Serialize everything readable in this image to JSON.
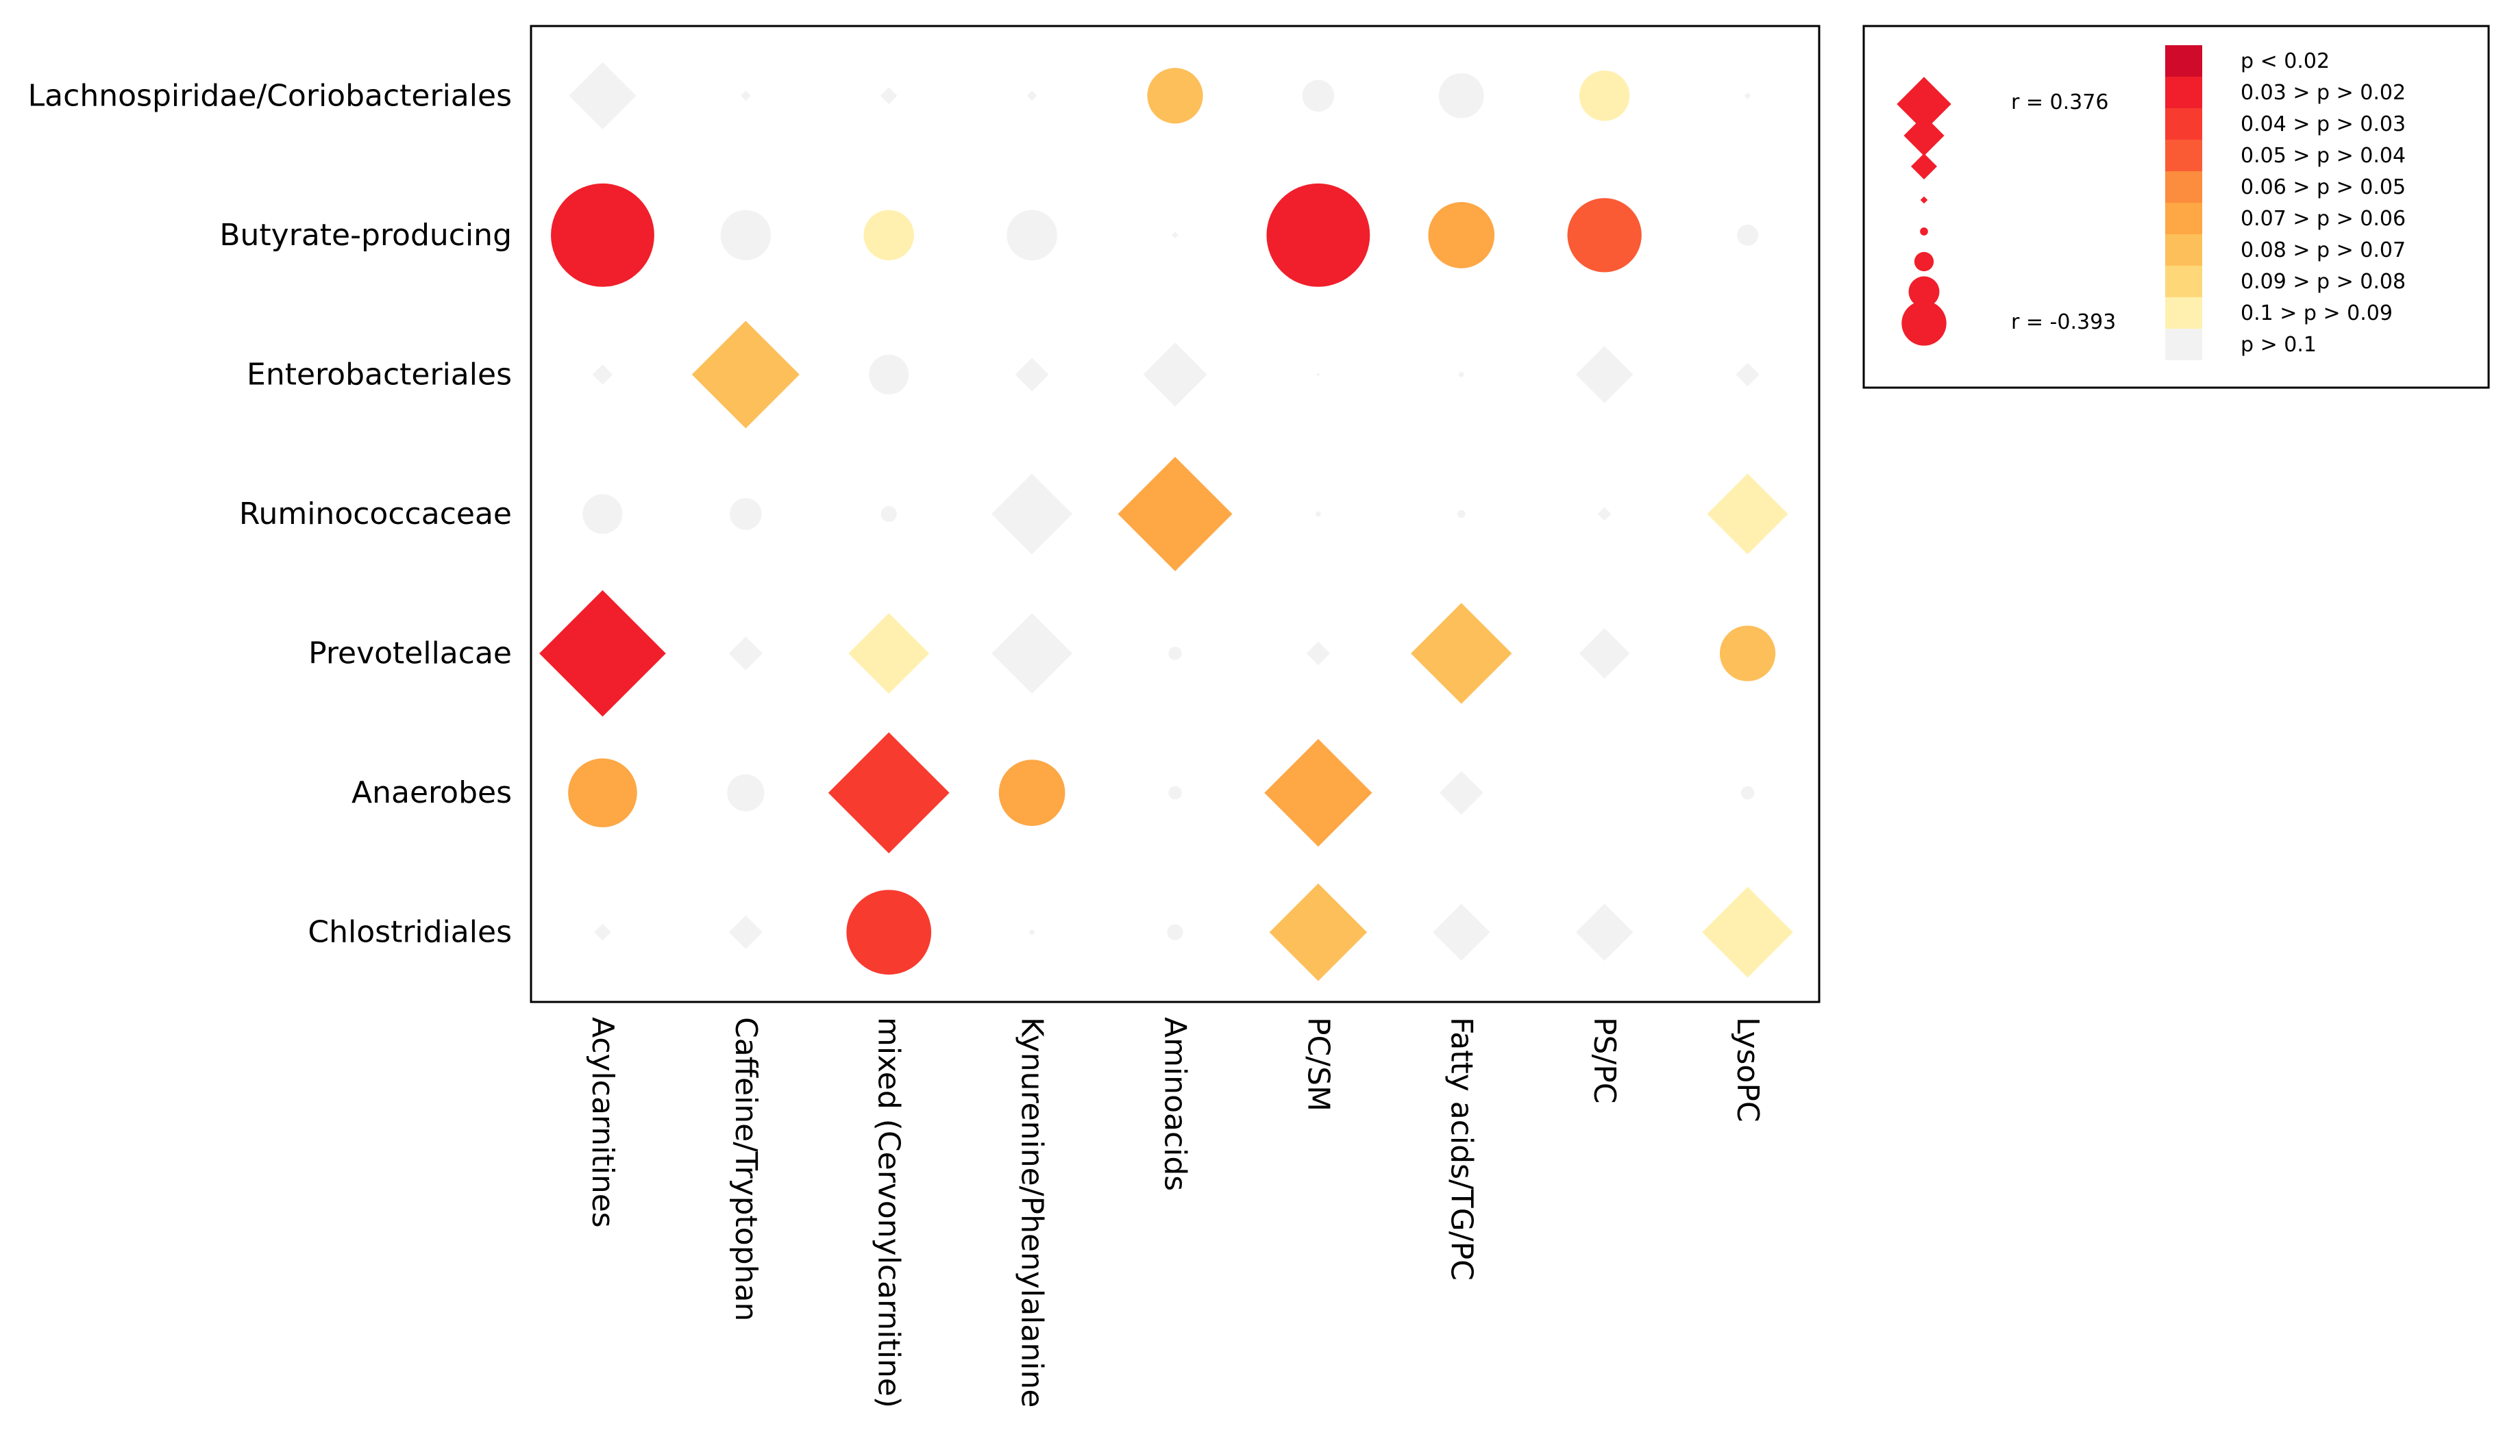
{
  "chart_data": {
    "type": "correlation-bubble-matrix",
    "rows": [
      "Lachnospiridae/Coriobacteriales",
      "Butyrate-producing",
      "Enterobacteriales",
      "Ruminococcaceae",
      "Prevotellacae",
      "Anaerobes",
      "Chlostridiales"
    ],
    "columns": [
      "Acylcarnitines",
      "Caffeine/Tryptophan",
      "mixed (Cervonylcarnitine)",
      "Kynurenine/Phenylalanine",
      "Aminoacids",
      "PC/SM",
      "Fatty acids/TG/PC",
      "PS/PC",
      "LysoPC"
    ],
    "shape_rule": "diamond = positive r, circle = negative r; size = |r|",
    "cells": [
      [
        {
          "r": 0.2,
          "p_class": 9
        },
        {
          "r": 0.03,
          "p_class": 9
        },
        {
          "r": 0.05,
          "p_class": 9
        },
        {
          "r": 0.03,
          "p_class": 9
        },
        {
          "r": -0.21,
          "p_class": 6
        },
        {
          "r": -0.12,
          "p_class": 9
        },
        {
          "r": -0.17,
          "p_class": 9
        },
        {
          "r": -0.19,
          "p_class": 8
        },
        {
          "r": 0.02,
          "p_class": 9
        }
      ],
      [
        {
          "r": -0.39,
          "p_class": 1
        },
        {
          "r": -0.19,
          "p_class": 9
        },
        {
          "r": -0.19,
          "p_class": 8
        },
        {
          "r": -0.19,
          "p_class": 9
        },
        {
          "r": 0.02,
          "p_class": 9
        },
        {
          "r": -0.39,
          "p_class": 1
        },
        {
          "r": -0.25,
          "p_class": 5
        },
        {
          "r": -0.28,
          "p_class": 3
        },
        {
          "r": -0.08,
          "p_class": 9
        }
      ],
      [
        {
          "r": 0.06,
          "p_class": 9
        },
        {
          "r": 0.32,
          "p_class": 6
        },
        {
          "r": -0.15,
          "p_class": 9
        },
        {
          "r": 0.1,
          "p_class": 9
        },
        {
          "r": 0.19,
          "p_class": 9
        },
        {
          "r": 0.01,
          "p_class": 9
        },
        {
          "r": -0.02,
          "p_class": 9
        },
        {
          "r": 0.17,
          "p_class": 9
        },
        {
          "r": 0.07,
          "p_class": 9
        }
      ],
      [
        {
          "r": -0.15,
          "p_class": 9
        },
        {
          "r": -0.12,
          "p_class": 9
        },
        {
          "r": -0.06,
          "p_class": 9
        },
        {
          "r": 0.24,
          "p_class": 9
        },
        {
          "r": 0.34,
          "p_class": 5
        },
        {
          "r": -0.02,
          "p_class": 9
        },
        {
          "r": -0.03,
          "p_class": 9
        },
        {
          "r": 0.04,
          "p_class": 9
        },
        {
          "r": 0.24,
          "p_class": 8
        }
      ],
      [
        {
          "r": 0.376,
          "p_class": 1
        },
        {
          "r": 0.1,
          "p_class": 9
        },
        {
          "r": 0.24,
          "p_class": 8
        },
        {
          "r": 0.24,
          "p_class": 9
        },
        {
          "r": -0.05,
          "p_class": 9
        },
        {
          "r": 0.07,
          "p_class": 9
        },
        {
          "r": 0.3,
          "p_class": 6
        },
        {
          "r": 0.15,
          "p_class": 9
        },
        {
          "r": -0.21,
          "p_class": 6
        }
      ],
      [
        {
          "r": -0.26,
          "p_class": 5
        },
        {
          "r": -0.14,
          "p_class": 9
        },
        {
          "r": 0.36,
          "p_class": 2
        },
        {
          "r": -0.25,
          "p_class": 5
        },
        {
          "r": -0.05,
          "p_class": 9
        },
        {
          "r": 0.32,
          "p_class": 5
        },
        {
          "r": 0.13,
          "p_class": 9
        },
        {
          "r": 0.0,
          "p_class": 9
        },
        {
          "r": -0.05,
          "p_class": 9
        }
      ],
      [
        {
          "r": 0.05,
          "p_class": 9
        },
        {
          "r": 0.1,
          "p_class": 9
        },
        {
          "r": -0.32,
          "p_class": 2
        },
        {
          "r": -0.02,
          "p_class": 9
        },
        {
          "r": -0.06,
          "p_class": 9
        },
        {
          "r": 0.29,
          "p_class": 6
        },
        {
          "r": 0.17,
          "p_class": 9
        },
        {
          "r": 0.17,
          "p_class": 9
        },
        {
          "r": 0.27,
          "p_class": 8
        }
      ]
    ],
    "legend": {
      "r_max_label": "r = 0.376",
      "r_min_label": "r = -0.393",
      "size_samples": [
        0.376,
        0.28,
        0.18,
        0.05,
        0.07,
        0.17,
        0.27,
        0.393
      ],
      "size_sample_signs": [
        1,
        1,
        1,
        1,
        -1,
        -1,
        -1,
        -1
      ],
      "p_classes": [
        {
          "label": "p < 0.02",
          "color": "#cf0a2a"
        },
        {
          "label": "0.03 > p > 0.02",
          "color": "#f01f2b"
        },
        {
          "label": "0.04 > p > 0.03",
          "color": "#f83b2f"
        },
        {
          "label": "0.05 > p > 0.04",
          "color": "#fa5b35"
        },
        {
          "label": "0.06 > p > 0.05",
          "color": "#fc8c3e"
        },
        {
          "label": "0.07 > p > 0.06",
          "color": "#fda745"
        },
        {
          "label": "0.08 > p > 0.07",
          "color": "#fdbf5a"
        },
        {
          "label": "0.09 > p > 0.08",
          "color": "#fed878"
        },
        {
          "label": "0.1 > p > 0.09",
          "color": "#fff0b0"
        },
        {
          "label": "p > 0.1",
          "color": "#f2f2f2"
        }
      ]
    }
  }
}
